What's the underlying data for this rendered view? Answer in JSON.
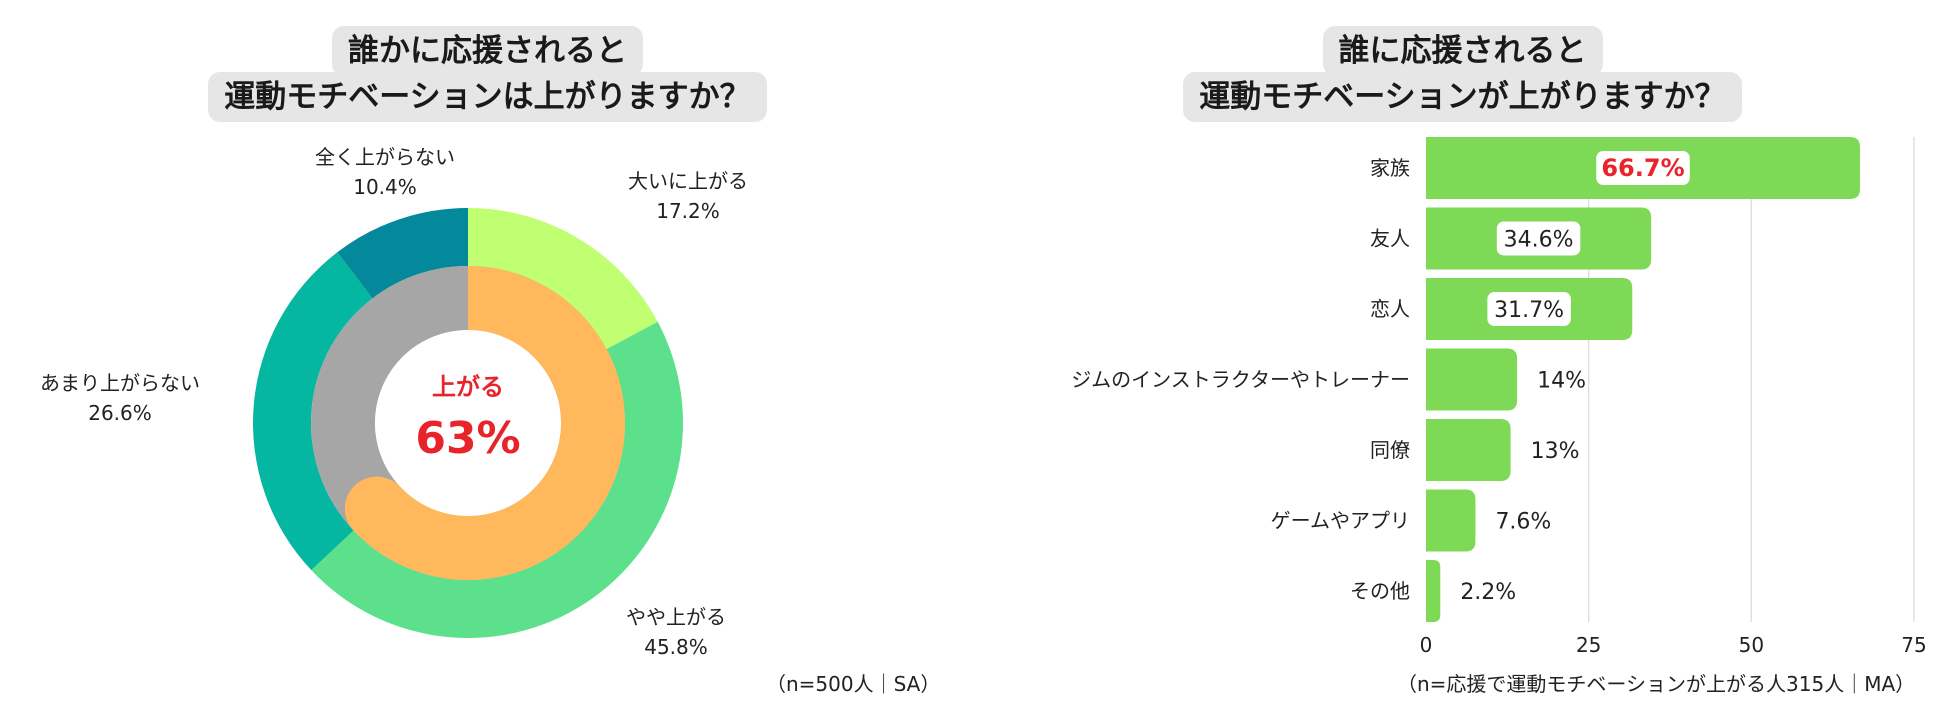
{
  "left": {
    "title_line1": "誰かに応援されると",
    "title_line2": "運動モチベーションは上がりますか？",
    "center_label": "上がる",
    "center_value": "63%",
    "note": "（n=500人｜SA）"
  },
  "right": {
    "title_line1": "誰に応援されると",
    "title_line2": "運動モチベーションが上がりますか？",
    "note": "（n=応援で運動モチベーションが上がる人315人｜MA）"
  },
  "colors": {
    "accent_red": "#e8232a",
    "bar_green": "#7ed957",
    "outer_great": "#c1ff72",
    "outer_slight": "#5ce08c",
    "outer_not_much": "#05b6a0",
    "outer_not_at_all": "#03899b",
    "inner_up": "#ffb85c",
    "inner_not_up": "#a6a6a6"
  },
  "chart_data": [
    {
      "type": "pie",
      "variant": "double-donut",
      "outer_ring": {
        "labels": [
          "大いに上がる",
          "やや上がる",
          "あまり上がらない",
          "全く上がらない"
        ],
        "values": [
          17.2,
          45.8,
          26.6,
          10.4
        ],
        "value_labels": [
          "17.2%",
          "45.8%",
          "26.6%",
          "10.4%"
        ],
        "colors": [
          "#c1ff72",
          "#5ce08c",
          "#05b6a0",
          "#03899b"
        ]
      },
      "inner_ring": {
        "values": [
          63,
          37
        ],
        "colors": [
          "#ffb85c",
          "#a6a6a6"
        ]
      },
      "center_text": [
        "上がる",
        "63%"
      ]
    },
    {
      "type": "bar",
      "orientation": "horizontal",
      "categories": [
        "家族",
        "友人",
        "恋人",
        "ジムのインストラクターやトレーナー",
        "同僚",
        "ゲームやアプリ",
        "その他"
      ],
      "values": [
        66.7,
        34.6,
        31.7,
        14,
        13,
        7.6,
        2.2
      ],
      "value_labels": [
        "66.7%",
        "34.6%",
        "31.7%",
        "14%",
        "13%",
        "7.6%",
        "2.2%"
      ],
      "xlim": [
        0,
        75
      ],
      "xticks": [
        0,
        25,
        50,
        75
      ],
      "xtick_labels": [
        "0",
        "25",
        "50",
        "75"
      ],
      "grid": true
    }
  ]
}
